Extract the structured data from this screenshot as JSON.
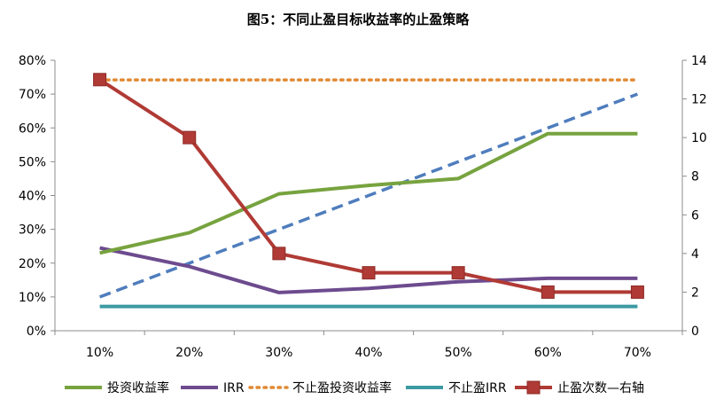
{
  "chart_data": {
    "type": "line",
    "title": "图5：不同止盈目标收益率的止盈策略",
    "categories": [
      "10%",
      "20%",
      "30%",
      "40%",
      "50%",
      "60%",
      "70%"
    ],
    "y_left": {
      "min": 0,
      "max": 0.8,
      "step": 0.1,
      "tick_labels": [
        "0%",
        "10%",
        "20%",
        "30%",
        "40%",
        "50%",
        "60%",
        "70%",
        "80%"
      ]
    },
    "y_right": {
      "min": 0,
      "max": 14,
      "step": 2,
      "tick_labels": [
        "0",
        "2",
        "4",
        "6",
        "8",
        "10",
        "12",
        "14"
      ]
    },
    "series": [
      {
        "name": "投资收益率",
        "axis": "left",
        "color": "#77a33f",
        "style": "solid",
        "values": [
          0.23,
          0.29,
          0.405,
          0.43,
          0.45,
          0.583,
          0.583
        ]
      },
      {
        "name": "IRR",
        "axis": "left",
        "color": "#6d4b8e",
        "style": "solid",
        "values": [
          0.245,
          0.19,
          0.113,
          0.125,
          0.145,
          0.155,
          0.155
        ]
      },
      {
        "name": "不止盈投资收益率",
        "axis": "left",
        "color": "#e08a34",
        "style": "dotted",
        "values": [
          0.742,
          0.742,
          0.742,
          0.742,
          0.742,
          0.742,
          0.742
        ]
      },
      {
        "name": "不止盈IRR",
        "axis": "left",
        "color": "#3c9aa3",
        "style": "solid",
        "values": [
          0.072,
          0.072,
          0.072,
          0.072,
          0.072,
          0.072,
          0.072
        ]
      },
      {
        "name": "止盈次数—右轴",
        "axis": "right",
        "color": "#b03a35",
        "style": "solid-marker",
        "values": [
          13,
          10,
          4,
          3,
          3,
          2,
          2
        ]
      },
      {
        "name": "",
        "axis": "left",
        "color": "#4f7dbd",
        "style": "dashed",
        "in_legend": false,
        "values": [
          0.1,
          0.2,
          0.3,
          0.4,
          0.5,
          0.6,
          0.7
        ]
      }
    ]
  }
}
